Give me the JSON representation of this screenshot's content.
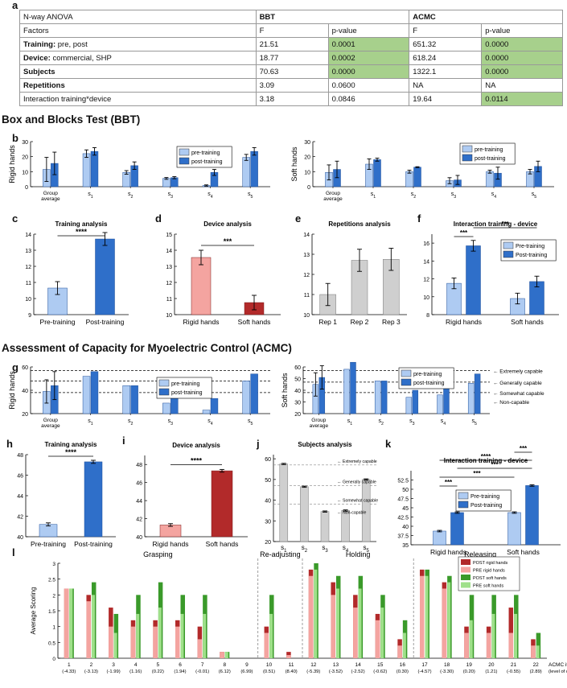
{
  "colors": {
    "light_blue": "#aecbf2",
    "dark_blue": "#2f6fc9",
    "pink": "#f4a4a0",
    "dark_red": "#b22a2a",
    "gray": "#cfcfcf",
    "light_green": "#9fe08a",
    "dark_green": "#3a9a2a",
    "sig_green": "#a7d08c"
  },
  "panel_labels": {
    "a": "a",
    "b": "b",
    "c": "c",
    "d": "d",
    "e": "e",
    "f": "f",
    "g": "g",
    "h": "h",
    "i": "i",
    "j": "j",
    "k": "k",
    "l": "l"
  },
  "sections": {
    "bbt": "Box and Blocks Test (BBT)",
    "acmc": "Assessment of Capacity for Myoelectric Control (ACMC)"
  },
  "table": {
    "title": "N-way ANOVA",
    "group_bbt": "BBT",
    "group_acmc": "ACMC",
    "factors_label": "Factors",
    "col_f": "F",
    "col_p": "p-value",
    "rows": [
      {
        "bold": "Training:",
        "rest": " pre, post",
        "bbt_f": "21.51",
        "bbt_p": "0.0001",
        "bbt_sig": true,
        "acmc_f": "651.32",
        "acmc_p": "0.0000",
        "acmc_sig": true
      },
      {
        "bold": "Device:",
        "rest": " commercial, SHP",
        "bbt_f": "18.77",
        "bbt_p": "0.0002",
        "bbt_sig": true,
        "acmc_f": "618.24",
        "acmc_p": "0.0000",
        "acmc_sig": true
      },
      {
        "bold": "Subjects",
        "rest": "",
        "bbt_f": "70.63",
        "bbt_p": "0.0000",
        "bbt_sig": true,
        "acmc_f": "1322.1",
        "acmc_p": "0.0000",
        "acmc_sig": true
      },
      {
        "bold": "Repetitions",
        "rest": "",
        "bbt_f": "3.09",
        "bbt_p": "0.0600",
        "bbt_sig": false,
        "acmc_f": "NA",
        "acmc_p": "NA",
        "acmc_sig": false
      },
      {
        "bold": "",
        "rest": "Interaction training*device",
        "bbt_f": "3.18",
        "bbt_p": "0.0846",
        "bbt_sig": false,
        "acmc_f": "19.64",
        "acmc_p": "0.0114",
        "acmc_sig": true
      }
    ]
  },
  "chart_data": [
    {
      "id": "b-rigid",
      "type": "bar",
      "ylabel": "Rigid hands",
      "ylim": [
        0,
        30
      ],
      "yticks": [
        0,
        10,
        20,
        30
      ],
      "categories": [
        "Group average",
        "s1",
        "s2",
        "s3",
        "s4",
        "s5"
      ],
      "legend": [
        "pre-training",
        "post-training"
      ],
      "series": [
        {
          "name": "pre-training",
          "values": [
            11.5,
            22,
            9.5,
            5.5,
            0.8,
            19.5
          ],
          "err": [
            8,
            2.5,
            1.2,
            0.6,
            0.4,
            2
          ]
        },
        {
          "name": "post-training",
          "values": [
            15.5,
            23.5,
            14,
            6,
            9.5,
            23.5
          ],
          "err": [
            7.5,
            2.5,
            2.5,
            0.7,
            2,
            2.5
          ]
        }
      ]
    },
    {
      "id": "b-soft",
      "type": "bar",
      "ylabel": "Soft hands",
      "ylim": [
        0,
        30
      ],
      "yticks": [
        0,
        10,
        20,
        30
      ],
      "categories": [
        "Group average",
        "s1",
        "s2",
        "s3",
        "s4",
        "s5"
      ],
      "legend": [
        "pre-training",
        "post-training"
      ],
      "series": [
        {
          "name": "pre-training",
          "values": [
            9.5,
            15,
            10,
            4,
            10,
            10
          ],
          "err": [
            5,
            3.5,
            1,
            2,
            1,
            1.5
          ]
        },
        {
          "name": "post-training",
          "values": [
            11.5,
            18,
            13,
            4.5,
            9,
            13.5
          ],
          "err": [
            5.5,
            1,
            0.3,
            3,
            4,
            3.5
          ]
        }
      ]
    },
    {
      "id": "c",
      "type": "bar",
      "title": "Training analysis",
      "ylim": [
        9,
        14
      ],
      "yticks": [
        9,
        10,
        11,
        12,
        13,
        14
      ],
      "categories": [
        "Pre-training",
        "Post-training"
      ],
      "values": [
        10.65,
        13.7
      ],
      "err": [
        0.4,
        0.4
      ],
      "sig": "****"
    },
    {
      "id": "d",
      "type": "bar",
      "title": "Device analysis",
      "ylim": [
        10,
        15
      ],
      "yticks": [
        10,
        11,
        12,
        13,
        14,
        15
      ],
      "categories": [
        "Rigid hands",
        "Soft hands"
      ],
      "values": [
        13.55,
        10.75
      ],
      "err": [
        0.45,
        0.45
      ],
      "sig": "***"
    },
    {
      "id": "e",
      "type": "bar",
      "title": "Repetitions analysis",
      "ylim": [
        10,
        14
      ],
      "yticks": [
        10,
        11,
        12,
        13,
        14
      ],
      "categories": [
        "Rep 1",
        "Rep 2",
        "Rep 3"
      ],
      "values": [
        11,
        12.7,
        12.75
      ],
      "err": [
        0.55,
        0.55,
        0.55
      ]
    },
    {
      "id": "f",
      "type": "bar",
      "title": "Interaction training - device",
      "ylim": [
        8,
        17
      ],
      "yticks": [
        8,
        10,
        12,
        14,
        16
      ],
      "categories": [
        "Rigid hands",
        "Soft hands"
      ],
      "legend": [
        "Pre-training",
        "Post-training"
      ],
      "series": [
        {
          "name": "Pre-training",
          "values": [
            11.5,
            9.8
          ],
          "err": [
            0.6,
            0.6
          ]
        },
        {
          "name": "Post-training",
          "values": [
            15.7,
            11.7
          ],
          "err": [
            0.6,
            0.6
          ]
        }
      ],
      "sig": [
        "***",
        "***"
      ]
    },
    {
      "id": "g-rigid",
      "type": "bar",
      "ylabel": "Rigid hands",
      "ylim": [
        20,
        60
      ],
      "yticks": [
        20,
        40,
        60
      ],
      "categories": [
        "Group average",
        "s1",
        "s2",
        "s3",
        "s4",
        "s5"
      ],
      "legend": [
        "pre-training",
        "post-training"
      ],
      "series": [
        {
          "name": "pre-training",
          "values": [
            39,
            52,
            44,
            29,
            23,
            48
          ],
          "err": [
            10,
            0,
            0,
            0,
            0,
            0
          ]
        },
        {
          "name": "post-training",
          "values": [
            44,
            56,
            44,
            33,
            33,
            54
          ],
          "err": [
            12,
            0,
            0,
            0,
            0,
            0
          ]
        }
      ],
      "thresholds": [
        57,
        48,
        38
      ]
    },
    {
      "id": "g-soft",
      "type": "bar",
      "ylabel": "Soft hands",
      "ylim": [
        20,
        60
      ],
      "yticks": [
        20,
        30,
        40,
        50,
        60
      ],
      "categories": [
        "Group average",
        "s1",
        "s2",
        "s3",
        "s4",
        "s5"
      ],
      "legend": [
        "pre-training",
        "post-training"
      ],
      "series": [
        {
          "name": "pre-training",
          "values": [
            45,
            58,
            48,
            34,
            36,
            46
          ],
          "err": [
            10,
            0,
            0,
            0,
            0,
            0
          ]
        },
        {
          "name": "post-training",
          "values": [
            51,
            64,
            48,
            40,
            47,
            54
          ],
          "err": [
            10,
            0,
            0,
            0,
            0,
            0
          ]
        }
      ],
      "thresholds": [
        57,
        47,
        38
      ],
      "threshold_labels": [
        "Extremely capable",
        "Generally capable",
        "Somewhat capable",
        "Non-capable"
      ]
    },
    {
      "id": "h",
      "type": "bar",
      "title": "Training analysis",
      "ylim": [
        40,
        48
      ],
      "yticks": [
        40,
        42,
        44,
        46,
        48
      ],
      "categories": [
        "Pre-training",
        "Post-training"
      ],
      "values": [
        41.2,
        47.3
      ],
      "err": [
        0.15,
        0.15
      ],
      "sig": "****"
    },
    {
      "id": "i",
      "type": "bar",
      "title": "Device analysis",
      "ylim": [
        40,
        49
      ],
      "yticks": [
        40,
        42,
        44,
        46,
        48
      ],
      "categories": [
        "Rigid hands",
        "Soft hands"
      ],
      "values": [
        41.3,
        47.3
      ],
      "err": [
        0.15,
        0.15
      ],
      "sig": "****"
    },
    {
      "id": "j",
      "type": "bar",
      "title": "Subjects analysis",
      "ylim": [
        20,
        62
      ],
      "yticks": [
        20,
        30,
        40,
        50,
        60
      ],
      "categories": [
        "s1",
        "s2",
        "s3",
        "s4",
        "s5"
      ],
      "values": [
        57.5,
        46.5,
        34.5,
        35,
        50
      ],
      "err": [
        0.3,
        0.3,
        0.3,
        0.3,
        0.3
      ],
      "thresholds": [
        57,
        47,
        38
      ],
      "threshold_labels": [
        "Extremely capable",
        "Generally capable",
        "Somewhat capable",
        "Non-capable"
      ]
    },
    {
      "id": "k",
      "type": "bar",
      "title": "Interaction training - device",
      "ylim": [
        35,
        55
      ],
      "yticks": [
        35,
        37.5,
        40,
        42.5,
        45,
        47.5,
        50,
        52.5
      ],
      "categories": [
        "Rigid hands",
        "Soft hands"
      ],
      "legend": [
        "Pre-training",
        "Post-training"
      ],
      "series": [
        {
          "name": "Pre-training",
          "values": [
            38.7,
            43.7
          ],
          "err": [
            0.2,
            0.2
          ]
        },
        {
          "name": "Post-training",
          "values": [
            43.7,
            51
          ],
          "err": [
            0.2,
            0.2
          ]
        }
      ],
      "sig": [
        "***",
        "***",
        "****",
        "***",
        "***"
      ]
    },
    {
      "id": "l",
      "type": "bar",
      "ylabel": "Average Scoring",
      "ylim": [
        0,
        3
      ],
      "yticks": [
        0,
        0.5,
        1,
        1.5,
        2,
        2.5,
        3
      ],
      "groups": [
        "Grasping",
        "Re-adjusting",
        "Holding",
        "Releasing"
      ],
      "categories": [
        "1",
        "2",
        "3",
        "4",
        "5",
        "6",
        "7",
        "8",
        "9",
        "10",
        "11",
        "12",
        "13",
        "14",
        "15",
        "16",
        "17",
        "18",
        "19",
        "20",
        "21",
        "22"
      ],
      "difficulty": [
        "(-4.33)",
        "(-3.13)",
        "(-1.99)",
        "(1.16)",
        "(0.22)",
        "(1.94)",
        "(-0.01)",
        "(6.12)",
        "(6.99)",
        "(0.51)",
        "(8.40)",
        "(-5.39)",
        "(-3.52)",
        "(-2.52)",
        "(-0.62)",
        "(0.30)",
        "(-4.57)",
        "(-3.30)",
        "(0.20)",
        "(1.21)",
        "(-0.55)",
        "(2.89)"
      ],
      "xlabel": "ACMC items",
      "xlabel2": "(level of difficulty)",
      "legend": [
        "POST rigid hands",
        "PRE rigid hands",
        "POST soft hands",
        "PRE soft hands"
      ],
      "series": [
        {
          "name": "POST rigid hands",
          "values": [
            2.2,
            2.0,
            1.6,
            1.2,
            1.2,
            1.2,
            1.0,
            0.2,
            0,
            1.0,
            0.2,
            2.8,
            2.4,
            2.0,
            1.4,
            0.6,
            2.8,
            2.4,
            1.0,
            1.0,
            1.6,
            0.6
          ]
        },
        {
          "name": "PRE rigid hands",
          "values": [
            2.2,
            1.8,
            1.0,
            1.0,
            1.0,
            1.0,
            0.6,
            0.2,
            0,
            0.8,
            0.1,
            2.6,
            2.0,
            1.6,
            1.2,
            0.4,
            2.6,
            2.2,
            0.8,
            0.8,
            0.8,
            0.4
          ]
        },
        {
          "name": "POST soft hands",
          "values": [
            2.2,
            2.4,
            1.4,
            2.0,
            2.4,
            2.0,
            2.0,
            0.2,
            0,
            2.0,
            0,
            3.0,
            2.6,
            2.6,
            2.0,
            1.2,
            2.8,
            2.6,
            2.0,
            2.0,
            2.0,
            0.8
          ]
        },
        {
          "name": "PRE soft hands",
          "values": [
            2.2,
            2.0,
            0.8,
            1.4,
            1.6,
            1.4,
            1.4,
            0.2,
            0,
            1.4,
            0,
            2.8,
            2.2,
            2.2,
            1.6,
            0.8,
            2.6,
            2.4,
            1.2,
            1.4,
            1.4,
            0.4
          ]
        }
      ]
    }
  ]
}
